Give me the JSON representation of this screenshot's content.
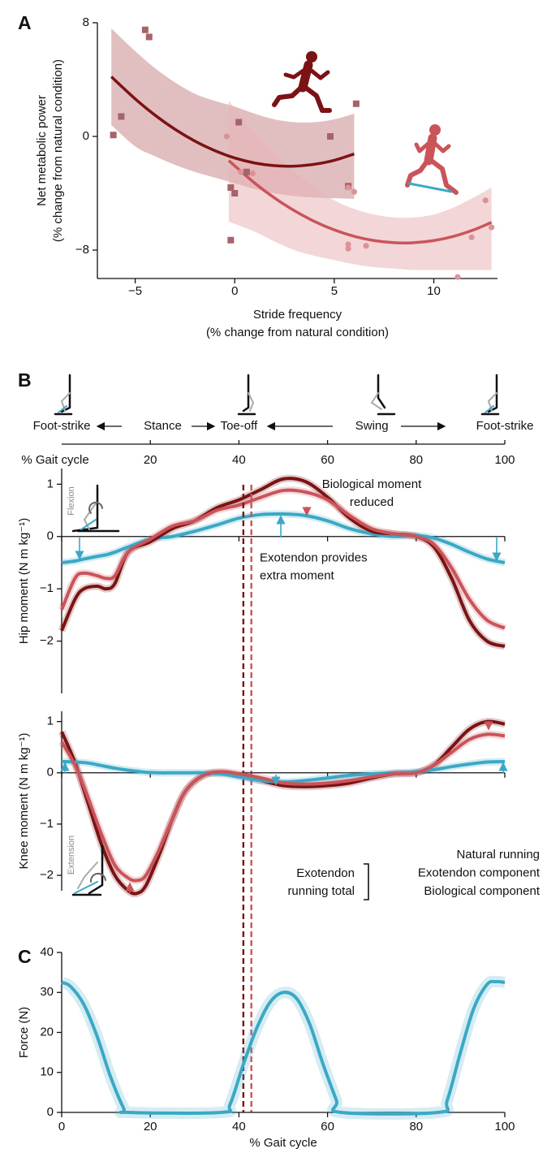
{
  "chart_data": [
    {
      "type": "scatter",
      "panel": "A",
      "ylabel": [
        "Net metabolic power",
        "(% change from natural condition)"
      ],
      "xlabel": [
        "Stride frequency",
        "(% change from natural condition)"
      ],
      "xlim": [
        -6.9,
        13.2
      ],
      "ylim": [
        -10,
        8
      ],
      "xticks": [
        {
          "value": -5,
          "label": "−5"
        },
        0,
        5,
        10
      ],
      "yticks": [
        {
          "value": -8,
          "label": "−8"
        },
        0,
        8
      ],
      "series": [
        {
          "kind": "fit",
          "color": "#7b1214",
          "band_color": "#c98a8c",
          "x": [
            -6.2,
            -5,
            -4,
            -3,
            -2,
            -1,
            0,
            1,
            2,
            3,
            4,
            5,
            6
          ],
          "values": [
            4.2,
            2.64,
            1.49,
            0.5,
            -0.33,
            -1.0,
            -1.52,
            -1.87,
            -2.06,
            -2.09,
            -1.96,
            -1.68,
            -1.23
          ],
          "upper": [
            7.6,
            6.0,
            4.8,
            3.8,
            3.0,
            2.5,
            2.1,
            1.6,
            1.2,
            1.0,
            1.0,
            1.2,
            1.6
          ],
          "lower": [
            0.8,
            -0.7,
            -1.4,
            -2.0,
            -2.5,
            -2.9,
            -3.3,
            -3.7,
            -4.0,
            -4.2,
            -4.3,
            -4.35,
            -4.4
          ]
        },
        {
          "kind": "fit",
          "color": "#c9545a",
          "band_color": "#eab5b7",
          "x": [
            -0.3,
            1,
            2,
            3,
            4,
            5,
            6,
            7,
            8,
            9,
            10,
            11,
            12,
            12.9
          ],
          "values": [
            -1.7,
            -3.28,
            -4.33,
            -5.23,
            -5.98,
            -6.58,
            -7.03,
            -7.33,
            -7.48,
            -7.48,
            -7.33,
            -7.03,
            -6.58,
            -6.05
          ],
          "upper": [
            2.5,
            0.3,
            -1.2,
            -2.5,
            -3.6,
            -4.5,
            -5.1,
            -5.5,
            -5.7,
            -5.7,
            -5.5,
            -5.0,
            -4.3,
            -3.6
          ],
          "lower": [
            -6.0,
            -6.7,
            -7.4,
            -8.0,
            -8.4,
            -8.7,
            -9.0,
            -9.2,
            -9.3,
            -9.4,
            -9.4,
            -9.4,
            -9.4,
            -9.4
          ]
        },
        {
          "kind": "points",
          "marker": "square",
          "color": "#a6646a",
          "x": [
            -6.1,
            -5.7,
            -4.5,
            -4.3,
            -0.2,
            0.0,
            -0.2,
            0.2,
            0.6,
            4.8,
            5.7,
            6.1
          ],
          "values": [
            0.1,
            1.4,
            7.5,
            7.0,
            -3.6,
            -4.0,
            -7.3,
            1.0,
            -2.5,
            0.0,
            -3.5,
            2.3
          ]
        },
        {
          "kind": "points",
          "marker": "circle",
          "color": "#dc9296",
          "x": [
            -0.4,
            0.3,
            0.9,
            5.7,
            6.0,
            5.7,
            5.7,
            6.6,
            11.2,
            11.9,
            12.6,
            12.9
          ],
          "values": [
            0.0,
            -2.5,
            -2.6,
            -3.6,
            -3.9,
            -7.6,
            -7.9,
            -7.7,
            -9.9,
            -7.1,
            -4.5,
            -6.4
          ]
        }
      ]
    },
    {
      "type": "timeline",
      "panel": "B",
      "xlabel": "% Gait cycle",
      "xlim": [
        0,
        100
      ],
      "xticks": [
        20,
        40,
        60,
        80,
        100
      ],
      "events": [
        {
          "label": "Foot-strike",
          "value": 0
        },
        {
          "label": "Toe-off",
          "value": 40
        },
        {
          "label": "Foot-strike",
          "value": 100
        }
      ],
      "phases": [
        "Stance",
        "Swing"
      ]
    },
    {
      "type": "line",
      "ylabel": "Hip moment (N m kg⁻¹)",
      "icon_label": "Flexion",
      "xlim": [
        0,
        100
      ],
      "ylim": [
        -3,
        1.3
      ],
      "xticks": [
        0,
        20,
        40,
        60,
        80,
        100
      ],
      "yticks": [
        {
          "value": -2,
          "label": "−2"
        },
        {
          "value": -1,
          "label": "−1"
        },
        0,
        1
      ],
      "annotations": [
        {
          "color": "#c9545a",
          "lines": [
            "Biological moment",
            "reduced"
          ]
        },
        {
          "color": "#3ba9c6",
          "lines": [
            "Exotendon provides",
            "extra moment"
          ]
        }
      ],
      "toe_off": [
        {
          "value": 41,
          "color": "#7b1214"
        },
        {
          "value": 42.8,
          "color": "#c9545a"
        }
      ],
      "x": [
        0,
        3,
        5,
        8,
        10,
        12,
        15,
        20,
        25,
        30,
        35,
        40,
        45,
        50,
        55,
        60,
        65,
        70,
        75,
        80,
        84,
        88,
        92,
        96,
        100
      ],
      "series": [
        {
          "color": "#3ba9c6",
          "values": [
            -0.5,
            -0.47,
            -0.43,
            -0.38,
            -0.35,
            -0.3,
            -0.2,
            -0.05,
            0,
            0.1,
            0.22,
            0.35,
            0.42,
            0.43,
            0.4,
            0.3,
            0.15,
            0.05,
            0,
            0.02,
            -0.03,
            -0.15,
            -0.3,
            -0.43,
            -0.5
          ]
        },
        {
          "color": "#7b1214",
          "values": [
            -1.8,
            -1.2,
            -1.0,
            -0.95,
            -1.0,
            -0.9,
            -0.3,
            -0.1,
            0.15,
            0.3,
            0.55,
            0.7,
            0.9,
            1.1,
            1.05,
            0.75,
            0.35,
            0.1,
            0.05,
            0,
            -0.2,
            -0.8,
            -1.6,
            -2.0,
            -2.1
          ]
        },
        {
          "color": "#c9545a",
          "values": [
            -1.4,
            -0.8,
            -0.7,
            -0.75,
            -0.8,
            -0.75,
            -0.3,
            -0.05,
            0.2,
            0.3,
            0.5,
            0.6,
            0.75,
            0.88,
            0.85,
            0.7,
            0.4,
            0.15,
            0.05,
            0,
            -0.15,
            -0.6,
            -1.2,
            -1.6,
            -1.75
          ]
        }
      ]
    },
    {
      "type": "line",
      "ylabel": "Knee moment (N m kg⁻¹)",
      "icon_label": "Extension",
      "xlim": [
        0,
        100
      ],
      "ylim": [
        -2.3,
        1.2
      ],
      "xticks": [
        0,
        20,
        40,
        60,
        80,
        100
      ],
      "yticks": [
        {
          "value": -2,
          "label": "−2"
        },
        {
          "value": -1,
          "label": "−1"
        },
        0,
        1
      ],
      "bracket_label": [
        "Exotendon",
        "running total"
      ],
      "x": [
        0,
        3,
        6,
        9,
        12,
        15,
        17,
        19,
        22,
        25,
        28,
        32,
        36,
        40,
        45,
        50,
        55,
        60,
        65,
        70,
        75,
        80,
        84,
        88,
        92,
        96,
        100
      ],
      "series": [
        {
          "name": "Natural running",
          "color": "#7b1214",
          "values": [
            0.8,
            0.2,
            -0.6,
            -1.4,
            -2.0,
            -2.3,
            -2.35,
            -2.2,
            -1.6,
            -0.9,
            -0.35,
            -0.05,
            0,
            -0.05,
            -0.15,
            -0.25,
            -0.27,
            -0.25,
            -0.2,
            -0.1,
            -0.02,
            0,
            0.15,
            0.5,
            0.85,
            1.0,
            0.95
          ]
        },
        {
          "name": "Exotendon component",
          "color": "#3ba9c6",
          "values": [
            0.22,
            0.21,
            0.19,
            0.14,
            0.09,
            0.05,
            0.03,
            0.01,
            0,
            0,
            0,
            0,
            -0.02,
            -0.08,
            -0.15,
            -0.18,
            -0.15,
            -0.1,
            -0.05,
            -0.02,
            0,
            0.02,
            0.06,
            0.12,
            0.17,
            0.21,
            0.22
          ]
        },
        {
          "name": "Biological component",
          "color": "#c9545a",
          "values": [
            0.6,
            0.15,
            -0.5,
            -1.2,
            -1.8,
            -2.05,
            -2.1,
            -2.0,
            -1.5,
            -0.9,
            -0.35,
            -0.05,
            0.02,
            -0.02,
            -0.1,
            -0.2,
            -0.22,
            -0.2,
            -0.15,
            -0.08,
            -0.02,
            0,
            0.15,
            0.4,
            0.65,
            0.75,
            0.72
          ]
        }
      ]
    },
    {
      "type": "line",
      "panel": "C",
      "ylabel": "Force (N)",
      "xlabel": "% Gait cycle",
      "xlim": [
        0,
        100
      ],
      "ylim": [
        0,
        40
      ],
      "xticks": [
        0,
        20,
        40,
        60,
        80,
        100
      ],
      "yticks": [
        0,
        10,
        20,
        30,
        40
      ],
      "x": [
        0,
        2,
        5,
        8,
        11,
        14,
        15,
        36,
        38,
        41,
        44,
        47,
        50,
        53,
        56,
        59,
        62,
        63,
        85,
        87,
        90,
        93,
        96,
        98,
        100
      ],
      "series": [
        {
          "color": "#3ba9c6",
          "values": [
            32.5,
            31.5,
            27,
            19,
            9,
            1,
            0,
            0,
            2,
            12,
            21,
            27.5,
            30,
            28.5,
            22,
            12,
            3,
            0,
            0,
            3,
            15,
            26,
            32,
            32.7,
            32.5
          ]
        }
      ]
    }
  ]
}
